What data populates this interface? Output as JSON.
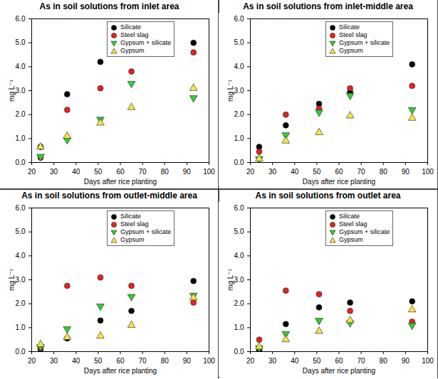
{
  "chart_data": [
    {
      "type": "scatter",
      "title": "As in soil solutions from inlet area",
      "x": [
        24,
        36,
        51,
        65,
        93
      ],
      "series": [
        {
          "name": "Silicate",
          "color": "#000000",
          "marker": "circle",
          "values": [
            0.65,
            2.85,
            4.2,
            null,
            5.0
          ]
        },
        {
          "name": "Steel slag",
          "color": "#e02424",
          "marker": "circle",
          "values": [
            0.2,
            2.2,
            3.1,
            3.8,
            4.6
          ]
        },
        {
          "name": "Gypsum + silicate",
          "color": "#33cc33",
          "marker": "triangle-down",
          "values": [
            0.25,
            0.95,
            1.8,
            3.3,
            2.7
          ]
        },
        {
          "name": "Gypsum",
          "color": "#f2e64a",
          "marker": "triangle",
          "values": [
            0.65,
            1.1,
            1.65,
            2.3,
            3.1
          ]
        }
      ],
      "x_label": "Days after rice planting",
      "y_label": "mg L⁻¹",
      "xlim": [
        20,
        100
      ],
      "xticks": [
        20,
        30,
        40,
        50,
        60,
        70,
        80,
        90,
        100
      ],
      "ylim": [
        0,
        6
      ],
      "yticks": [
        0,
        1,
        2,
        3,
        4,
        5,
        6
      ],
      "grid": false,
      "legend": "upper right"
    },
    {
      "type": "scatter",
      "title": "As in soil solutions from inlet-middle area",
      "x": [
        24,
        36,
        51,
        65,
        93
      ],
      "series": [
        {
          "name": "Silicate",
          "color": "#000000",
          "marker": "circle",
          "values": [
            0.65,
            1.55,
            2.45,
            2.95,
            4.1
          ]
        },
        {
          "name": "Steel slag",
          "color": "#e02424",
          "marker": "circle",
          "values": [
            0.45,
            2.0,
            2.25,
            3.1,
            3.2
          ]
        },
        {
          "name": "Gypsum + silicate",
          "color": "#33cc33",
          "marker": "triangle-down",
          "values": [
            0.15,
            1.15,
            2.1,
            2.8,
            2.2
          ]
        },
        {
          "name": "Gypsum",
          "color": "#f2e64a",
          "marker": "triangle",
          "values": [
            0.15,
            0.9,
            1.25,
            1.95,
            1.85
          ]
        }
      ],
      "x_label": "Days after rice planting",
      "y_label": "mg L⁻¹",
      "xlim": [
        20,
        100
      ],
      "xticks": [
        20,
        30,
        40,
        50,
        60,
        70,
        80,
        90,
        100
      ],
      "ylim": [
        0,
        6
      ],
      "yticks": [
        0,
        1,
        2,
        3,
        4,
        5,
        6
      ],
      "grid": false,
      "legend": "upper right"
    },
    {
      "type": "scatter",
      "title": "As in soil solutions from outlet-middle area",
      "x": [
        24,
        36,
        51,
        65,
        93
      ],
      "series": [
        {
          "name": "Silicate",
          "color": "#000000",
          "marker": "circle",
          "values": [
            0.1,
            0.55,
            1.3,
            1.7,
            2.95
          ]
        },
        {
          "name": "Steel slag",
          "color": "#e02424",
          "marker": "circle",
          "values": [
            0.15,
            2.75,
            3.1,
            2.75,
            2.05
          ]
        },
        {
          "name": "Gypsum + silicate",
          "color": "#33cc33",
          "marker": "triangle-down",
          "values": [
            0.2,
            0.95,
            1.9,
            2.3,
            2.35
          ]
        },
        {
          "name": "Gypsum",
          "color": "#f2e64a",
          "marker": "triangle",
          "values": [
            0.3,
            0.6,
            0.65,
            1.1,
            2.25
          ]
        }
      ],
      "x_label": "Days after rice planting",
      "y_label": "mg L⁻¹",
      "xlim": [
        20,
        100
      ],
      "xticks": [
        20,
        30,
        40,
        50,
        60,
        70,
        80,
        90,
        100
      ],
      "ylim": [
        0,
        6
      ],
      "yticks": [
        0,
        1,
        2,
        3,
        4,
        5,
        6
      ],
      "grid": false,
      "legend": "upper right"
    },
    {
      "type": "scatter",
      "title": "As in soil solutions from outlet area",
      "x": [
        24,
        36,
        51,
        65,
        93
      ],
      "series": [
        {
          "name": "Silicate",
          "color": "#000000",
          "marker": "circle",
          "values": [
            0.05,
            1.15,
            1.85,
            2.05,
            2.1
          ]
        },
        {
          "name": "Steel slag",
          "color": "#e02424",
          "marker": "circle",
          "values": [
            0.5,
            2.55,
            2.4,
            1.7,
            1.25
          ]
        },
        {
          "name": "Gypsum + silicate",
          "color": "#33cc33",
          "marker": "triangle-down",
          "values": [
            0.15,
            0.75,
            1.3,
            1.2,
            1.1
          ]
        },
        {
          "name": "Gypsum",
          "color": "#f2e64a",
          "marker": "triangle",
          "values": [
            0.2,
            0.5,
            0.85,
            1.3,
            1.75
          ]
        }
      ],
      "x_label": "Days after rice planting",
      "y_label": "mg L⁻¹",
      "xlim": [
        20,
        100
      ],
      "xticks": [
        20,
        30,
        40,
        50,
        60,
        70,
        80,
        90,
        100
      ],
      "ylim": [
        0,
        6
      ],
      "yticks": [
        0,
        1,
        2,
        3,
        4,
        5,
        6
      ],
      "grid": false,
      "legend": "upper right"
    }
  ]
}
